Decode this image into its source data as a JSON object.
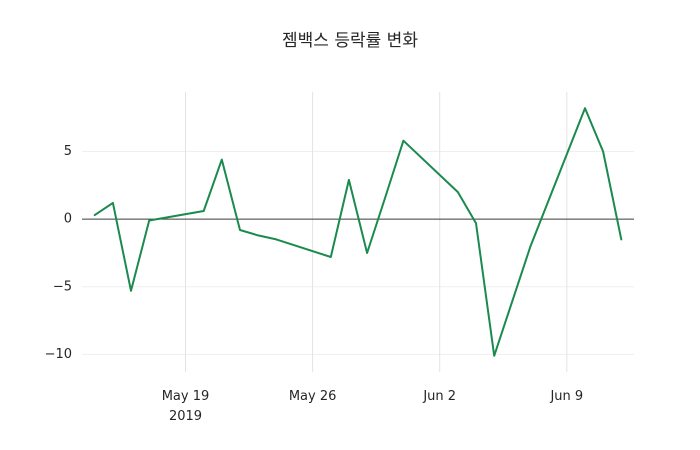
{
  "chart_data": {
    "type": "line",
    "title": "젬백스 등락률 변화",
    "line_color": "#1a8a4e",
    "xlabel": "",
    "ylabel": "",
    "legend": "none",
    "grid": true,
    "zero_line": true,
    "ylim": [
      -11.3,
      9.4
    ],
    "xlim_days": [
      13.3,
      43.7
    ],
    "x_ticks": [
      {
        "label": "May 19",
        "sublabel": "2019",
        "date": "May 19"
      },
      {
        "label": "May 26",
        "date": "May 26"
      },
      {
        "label": "Jun 2",
        "date": "Jun 2"
      },
      {
        "label": "Jun 9",
        "date": "Jun 9"
      }
    ],
    "y_ticks": [
      {
        "label": "5",
        "value": 5
      },
      {
        "label": "0",
        "value": 0
      },
      {
        "label": "−5",
        "value": -5
      },
      {
        "label": "−10",
        "value": -10
      }
    ],
    "points": [
      {
        "date": "May 14",
        "value": 0.3
      },
      {
        "date": "May 15",
        "value": 1.2
      },
      {
        "date": "May 16",
        "value": -5.3
      },
      {
        "date": "May 17",
        "value": -0.1
      },
      {
        "date": "May 20",
        "value": 0.6
      },
      {
        "date": "May 21",
        "value": 4.4
      },
      {
        "date": "May 22",
        "value": -0.8
      },
      {
        "date": "May 23",
        "value": -1.2
      },
      {
        "date": "May 24",
        "value": -1.5
      },
      {
        "date": "May 27",
        "value": -2.8
      },
      {
        "date": "May 28",
        "value": 2.9
      },
      {
        "date": "May 29",
        "value": -2.5
      },
      {
        "date": "May 30",
        "value": 1.6
      },
      {
        "date": "May 31",
        "value": 5.8
      },
      {
        "date": "Jun 3",
        "value": 2.0
      },
      {
        "date": "Jun 4",
        "value": -0.3
      },
      {
        "date": "Jun 5",
        "value": -10.1
      },
      {
        "date": "Jun 7",
        "value": -2.0
      },
      {
        "date": "Jun 10",
        "value": 8.2
      },
      {
        "date": "Jun 11",
        "value": 5.0
      },
      {
        "date": "Jun 12",
        "value": -1.5
      }
    ]
  }
}
